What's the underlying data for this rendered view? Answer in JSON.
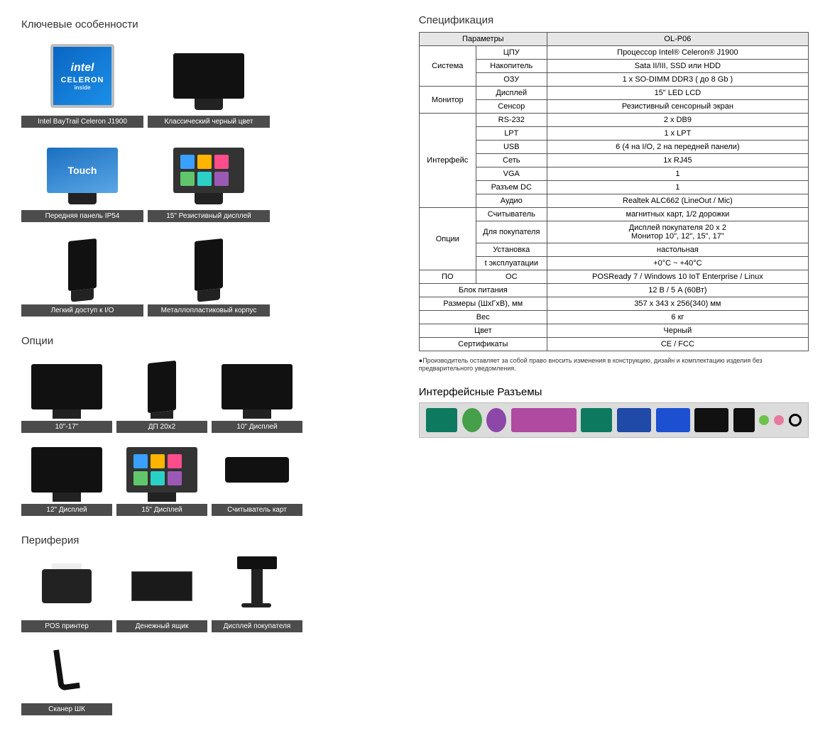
{
  "colors": {
    "caption_bg": "#4c4c4c",
    "caption_fg": "#ffffff",
    "table_border": "#555555",
    "table_header_bg": "#e6e6e6",
    "intel_gradient_from": "#0a66c2",
    "intel_gradient_to": "#1b8fe8"
  },
  "left": {
    "features_title": "Ключевые особенности",
    "features": [
      {
        "label": "Intel BayTrail Celeron J1900",
        "type": "intel"
      },
      {
        "label": "Классический черный цвет",
        "type": "pos-black"
      },
      {
        "label": "Передняя панель IP54",
        "type": "pos-touch"
      },
      {
        "label": "15\" Резистивный дисплей",
        "type": "pos-apps"
      },
      {
        "label": "Легкий доступ к I/O",
        "type": "pos-side"
      },
      {
        "label": "Металлопластиковый корпус",
        "type": "pos-side"
      }
    ],
    "options_title": "Опции",
    "options": [
      {
        "label": "10\"-17\"",
        "type": "pos-photo"
      },
      {
        "label": "ДП 20x2",
        "type": "pos-side"
      },
      {
        "label": "10\" Дисплей",
        "type": "pos-black"
      },
      {
        "label": "12\" Дисплей",
        "type": "pos-black"
      },
      {
        "label": "15\" Дисплей",
        "type": "pos-apps"
      },
      {
        "label": "Считыватель карт",
        "type": "card-reader"
      }
    ],
    "peripherals_title": "Периферия",
    "peripherals": [
      {
        "label": "POS принтер",
        "type": "printer"
      },
      {
        "label": "Денежный ящик",
        "type": "cash-drawer"
      },
      {
        "label": "Дисплей покупателя",
        "type": "pole-display"
      },
      {
        "label": "Сканер ШК",
        "type": "scanner"
      }
    ]
  },
  "right": {
    "spec_title": "Спецификация",
    "header_param": "Параметры",
    "header_model": "OL-P06",
    "rows": [
      {
        "group": "Система",
        "param": "ЦПУ",
        "value": "Процессор Intel® Celeron® J1900",
        "group_span": 3
      },
      {
        "group": "",
        "param": "Накопитель",
        "value": "Sata II/III, SSD или HDD"
      },
      {
        "group": "",
        "param": "ОЗУ",
        "value": "1 x SO-DIMM DDR3 ( до 8 Gb )"
      },
      {
        "group": "Монитор",
        "param": "Дисплей",
        "value": "15\" LED LCD",
        "group_span": 2
      },
      {
        "group": "",
        "param": "Сенсор",
        "value": "Резистивный сенсорный экран"
      },
      {
        "group": "Интерфейс",
        "param": "RS-232",
        "value": "2 x DB9",
        "group_span": 7
      },
      {
        "group": "",
        "param": "LPT",
        "value": "1 x LPT"
      },
      {
        "group": "",
        "param": "USB",
        "value": "6 (4 на I/O, 2 на передней панели)"
      },
      {
        "group": "",
        "param": "Сеть",
        "value": "1x RJ45"
      },
      {
        "group": "",
        "param": "VGA",
        "value": "1"
      },
      {
        "group": "",
        "param": "Разъем DC",
        "value": "1"
      },
      {
        "group": "",
        "param": "Аудио",
        "value": "Realtek ALC662 (LineOut / Mic)"
      },
      {
        "group": "Опции",
        "param": "Считыватель",
        "value": "магнитных карт, 1/2 дорожки",
        "group_span": 4
      },
      {
        "group": "",
        "param": "Для покупателя",
        "value": "Дисплей покупателя 20 x 2\nМонитор 10\", 12\", 15\", 17\""
      },
      {
        "group": "",
        "param": "Установка",
        "value": "настольная"
      },
      {
        "group": "",
        "param": "t эксплуатации",
        "value": "+0°C ~ +40°C"
      },
      {
        "group": "ПО",
        "param": "ОС",
        "value": "POSReady 7 / Windows 10 IoT Enterprise / Linux",
        "group_span": 1
      },
      {
        "group": "Блок питания",
        "param": "",
        "value": "12 В / 5 A (60Вт)",
        "full": true
      },
      {
        "group": "Размеры (ШxГxВ), мм",
        "param": "",
        "value": "357 x 343 x 256(340) мм",
        "full": true
      },
      {
        "group": "Вес",
        "param": "",
        "value": "6 кг",
        "full": true
      },
      {
        "group": "Цвет",
        "param": "",
        "value": "Черный",
        "full": true
      },
      {
        "group": "Сертификаты",
        "param": "",
        "value": "CE / FCC",
        "full": true
      }
    ],
    "footnote": "●Производитель оставляет за собой право вносить изменения в конструкцию, дизайн и комплектацию изделия без предварительного уведомления.",
    "ports_title": "Интерфейсные Разъемы",
    "ports": [
      "db9",
      "ps2g",
      "ps2p",
      "lpt",
      "db9b",
      "vga",
      "usb3",
      "usb2",
      "rj45",
      "audio",
      "audio pink",
      "dc"
    ]
  },
  "intel_badge": {
    "brand": "intel",
    "line": "CELERON",
    "inside": "inside"
  },
  "touch_label": "Touch",
  "app_colors": [
    "#3aa0ff",
    "#ffb400",
    "#ff4d8b",
    "#61c66b",
    "#2bd1c7",
    "#9b59b6"
  ]
}
